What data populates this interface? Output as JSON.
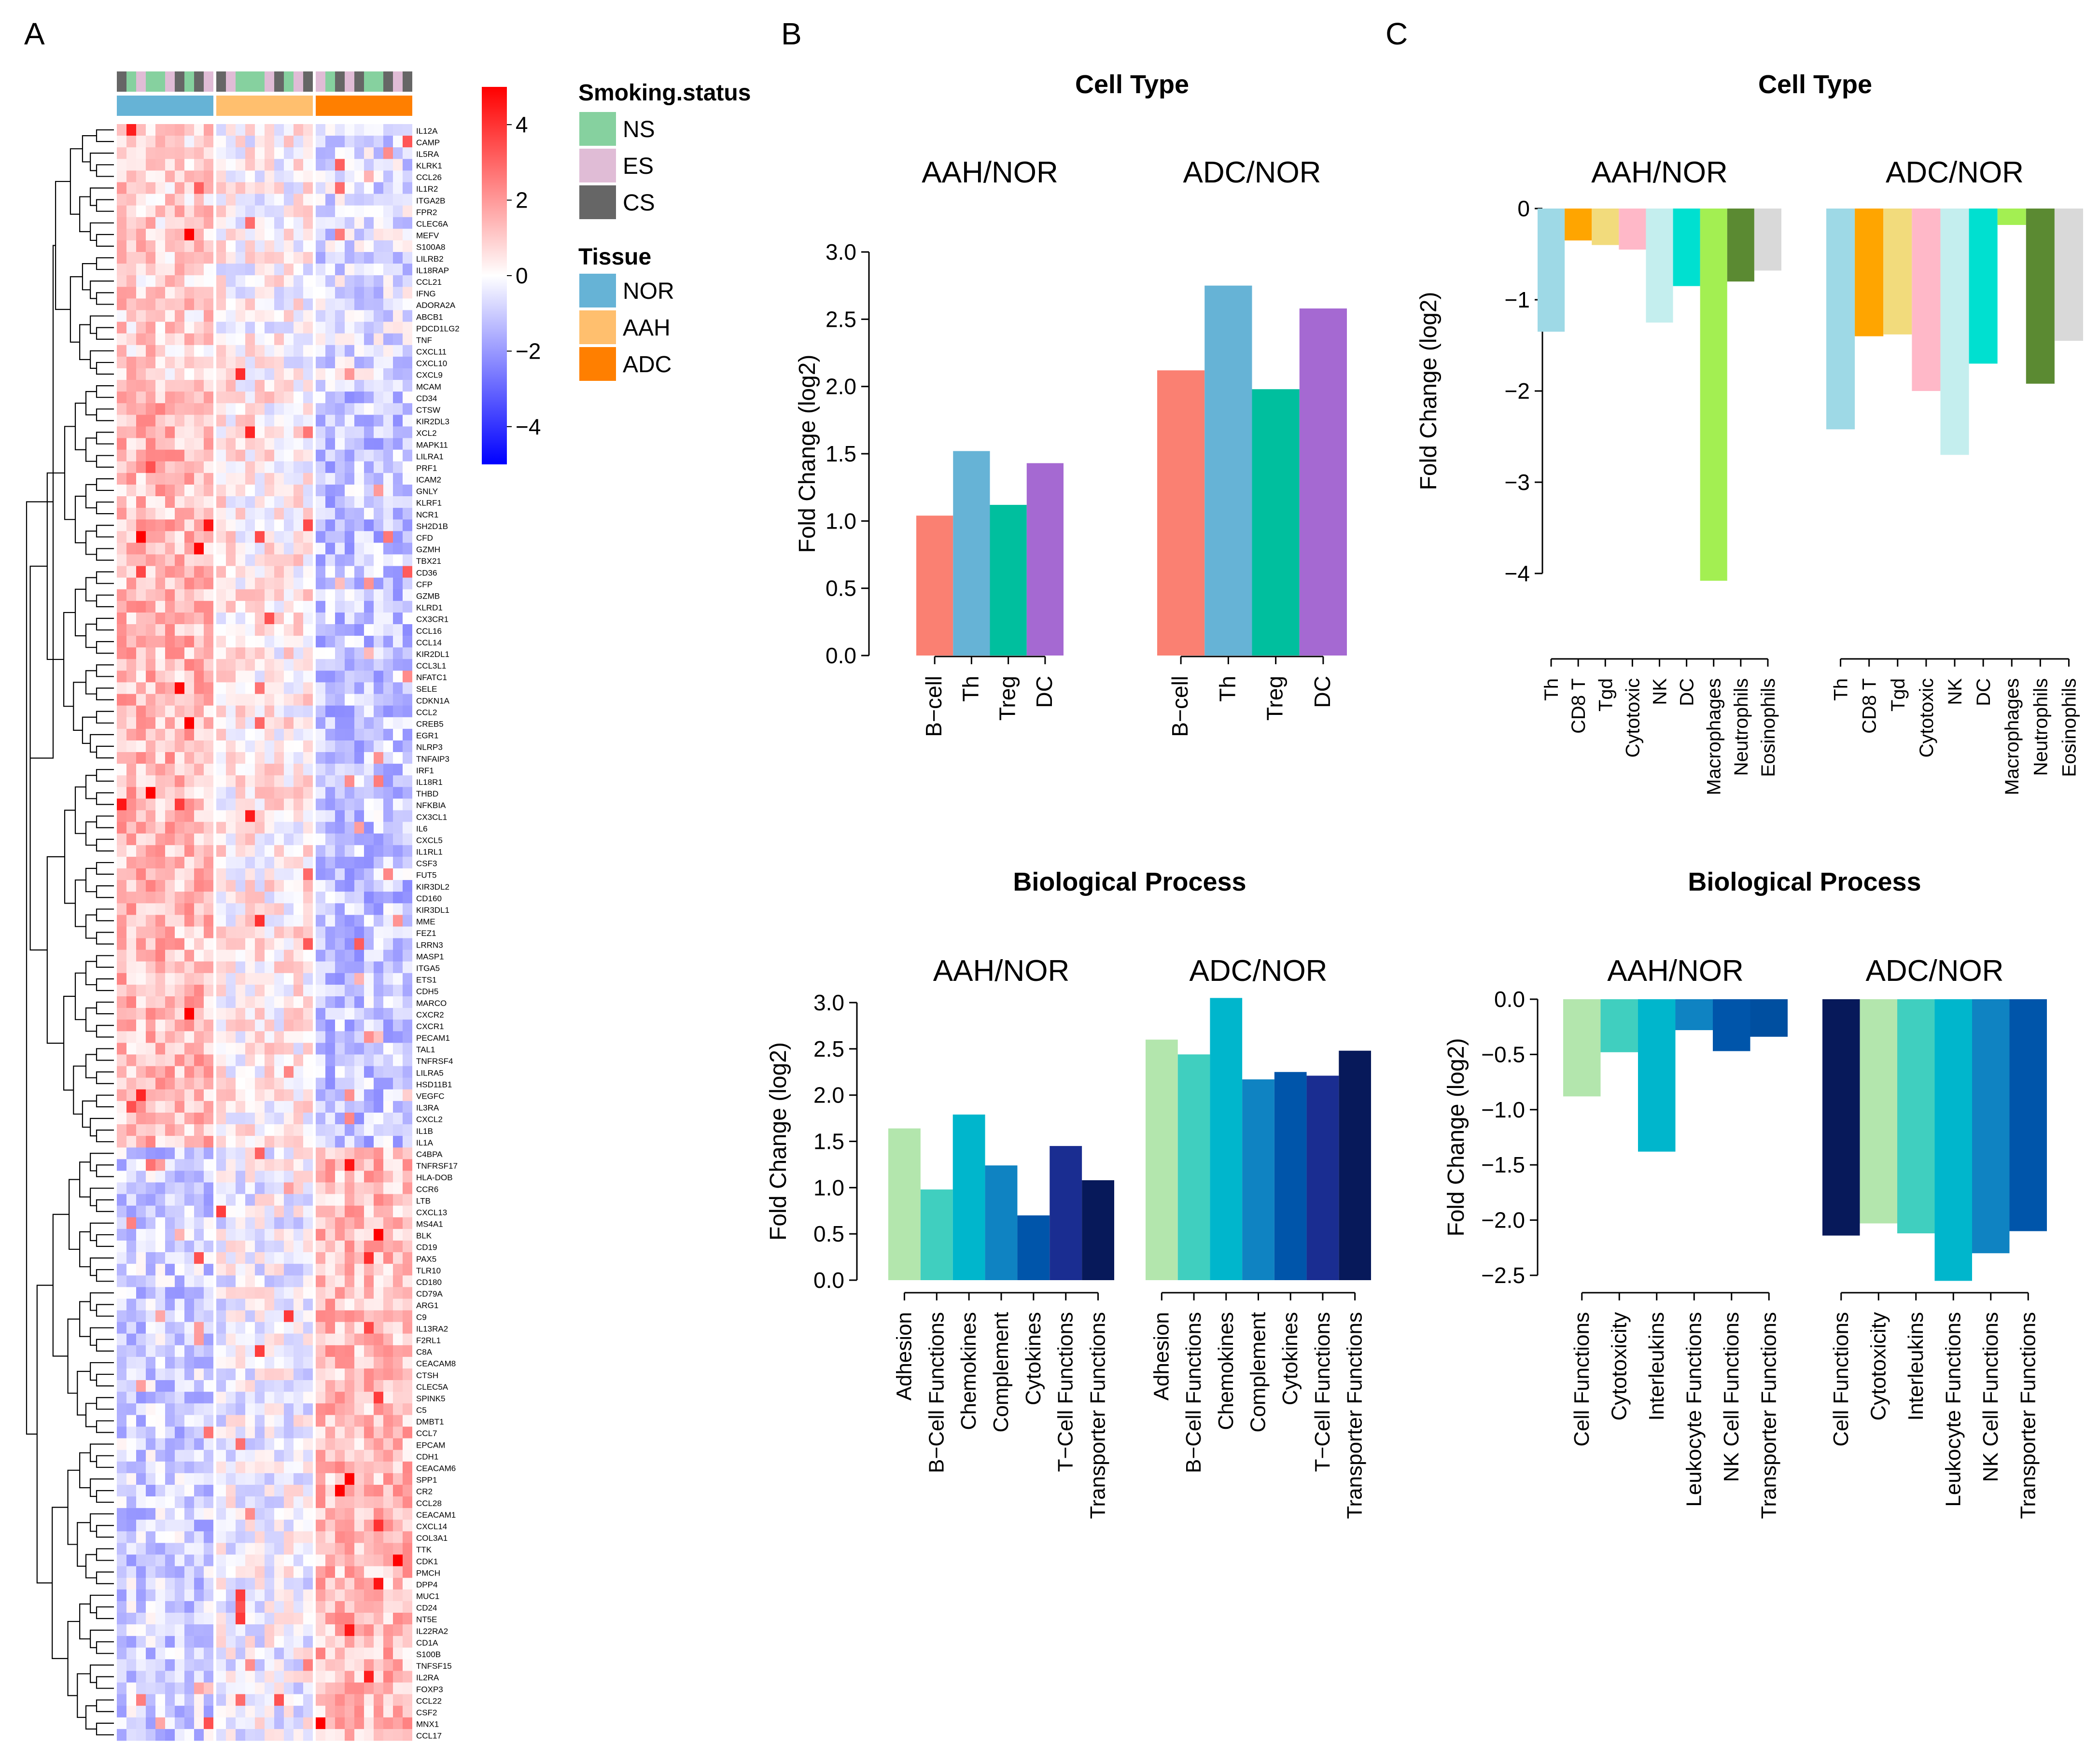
{
  "panels": {
    "a": "A",
    "b": "B",
    "c": "C"
  },
  "colors": {
    "NS": "#86d19f",
    "ES": "#e0bcd6",
    "CS": "#666666",
    "NOR": "#66b3d6",
    "AAH": "#ffbf6e",
    "ADC": "#ff7f00",
    "heat_low": "#0000ff",
    "heat_mid": "#ffffff",
    "heat_high": "#ff0000",
    "cell_b": [
      "#fa8072",
      "#66b3d6",
      "#00bf9e",
      "#a569d2"
    ],
    "cell_c": [
      "#9ed9e6",
      "#ffa500",
      "#f2db7c",
      "#ffb8c8",
      "#c4eeee",
      "#00e0d0",
      "#a3ef52",
      "#5b8a32",
      "#d9d9d9"
    ],
    "bio_b": [
      "#b3e6ad",
      "#40cfbf",
      "#00b6cc",
      "#0f83c2",
      "#0055aa",
      "#1a2d91",
      "#07195a"
    ],
    "bio_c_aah": [
      "#b3e6ad",
      "#40cfbf",
      "#00b6cc",
      "#0f83c2",
      "#0055aa",
      "#004fa0"
    ],
    "bio_c_adc": [
      "#07195a",
      "#b3e6ad",
      "#40cfbf",
      "#00b6cc",
      "#0f83c2",
      "#0055aa"
    ]
  },
  "heatmap": {
    "colorbar_ticks": [
      "4",
      "2",
      "0",
      "−2",
      "−4"
    ],
    "colorbar_range": [
      -5,
      5
    ],
    "smoking_title": "Smoking.status",
    "tissue_title": "Tissue",
    "smoking_legend": [
      "NS",
      "ES",
      "CS"
    ],
    "tissue_legend": [
      "NOR",
      "AAH",
      "ADC"
    ],
    "column_smoking": [
      "CS",
      "NS",
      "ES",
      "NS",
      "NS",
      "ES",
      "CS",
      "NS",
      "CS",
      "ES",
      "CS",
      "ES",
      "NS",
      "NS",
      "NS",
      "ES",
      "CS",
      "NS",
      "ES",
      "CS",
      "ES",
      "NS",
      "CS",
      "ES",
      "CS",
      "NS",
      "NS",
      "CS",
      "ES",
      "CS"
    ],
    "column_tissue": [
      "NOR",
      "NOR",
      "NOR",
      "NOR",
      "NOR",
      "NOR",
      "NOR",
      "NOR",
      "NOR",
      "NOR",
      "AAH",
      "AAH",
      "AAH",
      "AAH",
      "AAH",
      "AAH",
      "AAH",
      "AAH",
      "AAH",
      "AAH",
      "ADC",
      "ADC",
      "ADC",
      "ADC",
      "ADC",
      "ADC",
      "ADC",
      "ADC",
      "ADC",
      "ADC"
    ],
    "genes": [
      "IL12A",
      "CAMP",
      "IL5RA",
      "KLRK1",
      "CCL26",
      "IL1R2",
      "ITGA2B",
      "FPR2",
      "CLEC6A",
      "MEFV",
      "S100A8",
      "LILRB2",
      "IL18RAP",
      "CCL21",
      "IFNG",
      "ADORA2A",
      "ABCB1",
      "PDCD1LG2",
      "TNF",
      "CXCL11",
      "CXCL10",
      "CXCL9",
      "MCAM",
      "CD34",
      "CTSW",
      "KIR2DL3",
      "XCL2",
      "MAPK11",
      "LILRA1",
      "PRF1",
      "ICAM2",
      "GNLY",
      "KLRF1",
      "NCR1",
      "SH2D1B",
      "CFD",
      "GZMH",
      "TBX21",
      "CD36",
      "CFP",
      "GZMB",
      "KLRD1",
      "CX3CR1",
      "CCL16",
      "CCL14",
      "KIR2DL1",
      "CCL3L1",
      "NFATC1",
      "SELE",
      "CDKN1A",
      "CCL2",
      "CREB5",
      "EGR1",
      "NLRP3",
      "TNFAIP3",
      "IRF1",
      "IL18R1",
      "THBD",
      "NFKBIA",
      "CX3CL1",
      "IL6",
      "CXCL5",
      "IL1RL1",
      "CSF3",
      "FUT5",
      "KIR3DL2",
      "CD160",
      "KIR3DL1",
      "MME",
      "FEZ1",
      "LRRN3",
      "MASP1",
      "ITGA5",
      "ETS1",
      "CDH5",
      "MARCO",
      "CXCR2",
      "CXCR1",
      "PECAM1",
      "TAL1",
      "TNFRSF4",
      "LILRA5",
      "HSD11B1",
      "VEGFC",
      "IL3RA",
      "CXCL2",
      "IL1B",
      "IL1A",
      "C4BPA",
      "TNFRSF17",
      "HLA-DOB",
      "CCR6",
      "LTB",
      "CXCL13",
      "MS4A1",
      "BLK",
      "CD19",
      "PAX5",
      "TLR10",
      "CD180",
      "CD79A",
      "ARG1",
      "C9",
      "IL13RA2",
      "F2RL1",
      "C8A",
      "CEACAM8",
      "CTSH",
      "CLEC5A",
      "SPINK5",
      "C5",
      "DMBT1",
      "CCL7",
      "EPCAM",
      "CDH1",
      "CEACAM6",
      "SPP1",
      "CR2",
      "CCL28",
      "CEACAM1",
      "CXCL14",
      "COL3A1",
      "TTK",
      "CDK1",
      "PMCH",
      "DPP4",
      "MUC1",
      "CD24",
      "NT5E",
      "IL22RA2",
      "CD1A",
      "S100B",
      "TNFSF15",
      "IL2RA",
      "FOXP3",
      "CCL22",
      "CSF2",
      "MNX1",
      "CCL17"
    ]
  },
  "chart_data": [
    {
      "type": "bar",
      "panel": "B",
      "title": "Cell Type",
      "ylabel": "Fold Change (log2)",
      "ylim": [
        0,
        3
      ],
      "yticks": [
        "0.0",
        "0.5",
        "1.0",
        "1.5",
        "2.0",
        "2.5",
        "3.0"
      ],
      "groups": [
        {
          "name": "AAH/NOR",
          "categories": [
            "B−cell",
            "Th",
            "Treg",
            "DC"
          ],
          "values": [
            1.04,
            1.52,
            1.12,
            1.43
          ]
        },
        {
          "name": "ADC/NOR",
          "categories": [
            "B−cell",
            "Th",
            "Treg",
            "DC"
          ],
          "values": [
            2.12,
            2.75,
            1.98,
            2.58
          ]
        }
      ]
    },
    {
      "type": "bar",
      "panel": "C",
      "title": "Cell Type",
      "ylabel": "Fold Change (log2)",
      "ylim": [
        -4,
        0
      ],
      "yticks": [
        "0",
        "−1",
        "−2",
        "−3",
        "−4"
      ],
      "groups": [
        {
          "name": "AAH/NOR",
          "categories": [
            "Th",
            "CD8 T",
            "Tgd",
            "Cytotoxic",
            "NK",
            "DC",
            "Macrophages",
            "Neutrophils",
            "Eosinophils"
          ],
          "values": [
            -1.35,
            -0.35,
            -0.4,
            -0.45,
            -1.25,
            -0.85,
            -4.08,
            -0.8,
            -0.68
          ]
        },
        {
          "name": "ADC/NOR",
          "categories": [
            "Th",
            "CD8 T",
            "Tgd",
            "Cytotoxic",
            "NK",
            "DC",
            "Macrophages",
            "Neutrophils",
            "Eosinophils"
          ],
          "values": [
            -2.42,
            -1.4,
            -1.38,
            -2.0,
            -2.7,
            -1.7,
            -0.18,
            -1.92,
            -1.45
          ]
        }
      ]
    },
    {
      "type": "bar",
      "panel": "B",
      "title": "Biological Process",
      "ylabel": "Fold Change (log2)",
      "ylim": [
        0,
        3
      ],
      "yticks": [
        "0.0",
        "0.5",
        "1.0",
        "1.5",
        "2.0",
        "2.5",
        "3.0"
      ],
      "groups": [
        {
          "name": "AAH/NOR",
          "categories": [
            "Adhesion",
            "B−Cell Functions",
            "Chemokines",
            "Complement",
            "Cytokines",
            "T−Cell Functions",
            "Transporter Functions"
          ],
          "values": [
            1.64,
            0.98,
            1.79,
            1.24,
            0.7,
            1.45,
            1.08
          ]
        },
        {
          "name": "ADC/NOR",
          "categories": [
            "Adhesion",
            "B−Cell Functions",
            "Chemokines",
            "Complement",
            "Cytokines",
            "T−Cell Functions",
            "Transporter Functions"
          ],
          "values": [
            2.6,
            2.44,
            3.05,
            2.17,
            2.25,
            2.21,
            2.48
          ]
        }
      ]
    },
    {
      "type": "bar",
      "panel": "C",
      "title": "Biological Process",
      "ylabel": "Fold Change (log2)",
      "ylim": [
        -2.5,
        0
      ],
      "yticks": [
        "0.0",
        "−0.5",
        "−1.0",
        "−1.5",
        "−2.0",
        "−2.5"
      ],
      "groups": [
        {
          "name": "AAH/NOR",
          "categories": [
            "Cell Functions",
            "Cytotoxicity",
            "Interleukins",
            "Leukocyte Functions",
            "NK Cell Functions",
            "Transporter Functions"
          ],
          "values": [
            -0.88,
            -0.48,
            -1.38,
            -0.28,
            -0.47,
            -0.34
          ]
        },
        {
          "name": "ADC/NOR",
          "categories": [
            "Cell Functions",
            "Cytotoxicity",
            "Interleukins",
            "Leukocyte Functions",
            "NK Cell Functions",
            "Transporter Functions"
          ],
          "values": [
            -2.14,
            -2.03,
            -2.12,
            -2.55,
            -2.3,
            -2.1
          ]
        }
      ]
    }
  ]
}
